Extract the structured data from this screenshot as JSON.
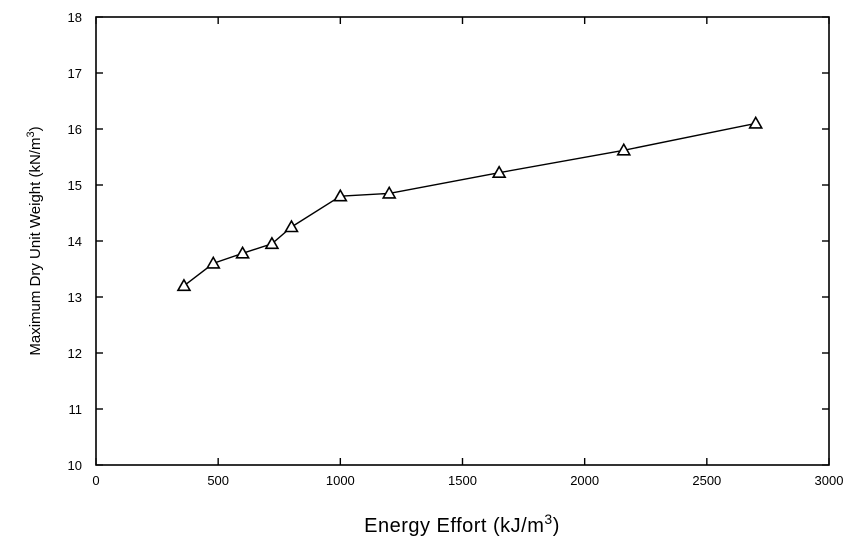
{
  "chart_data": {
    "type": "line",
    "title": "",
    "xlabel": {
      "text": "Energy Effort (kJ/m",
      "sup": "3",
      "close": ")"
    },
    "ylabel": {
      "text": "Maximum Dry Unit Weight (kN/m",
      "sup": "3",
      "close": ")"
    },
    "xlim": [
      0,
      3000
    ],
    "ylim": [
      10,
      18
    ],
    "xticks": [
      0,
      500,
      1000,
      1500,
      2000,
      2500,
      3000
    ],
    "yticks": [
      10,
      11,
      12,
      13,
      14,
      15,
      16,
      17,
      18
    ],
    "grid": false,
    "marker": "triangle-open",
    "series": [
      {
        "x": [
          360,
          480,
          600,
          720,
          800,
          1000,
          1200,
          1650,
          2160,
          2700
        ],
        "y": [
          13.2,
          13.6,
          13.78,
          13.95,
          14.25,
          14.8,
          14.85,
          15.22,
          15.62,
          16.1
        ]
      }
    ]
  }
}
